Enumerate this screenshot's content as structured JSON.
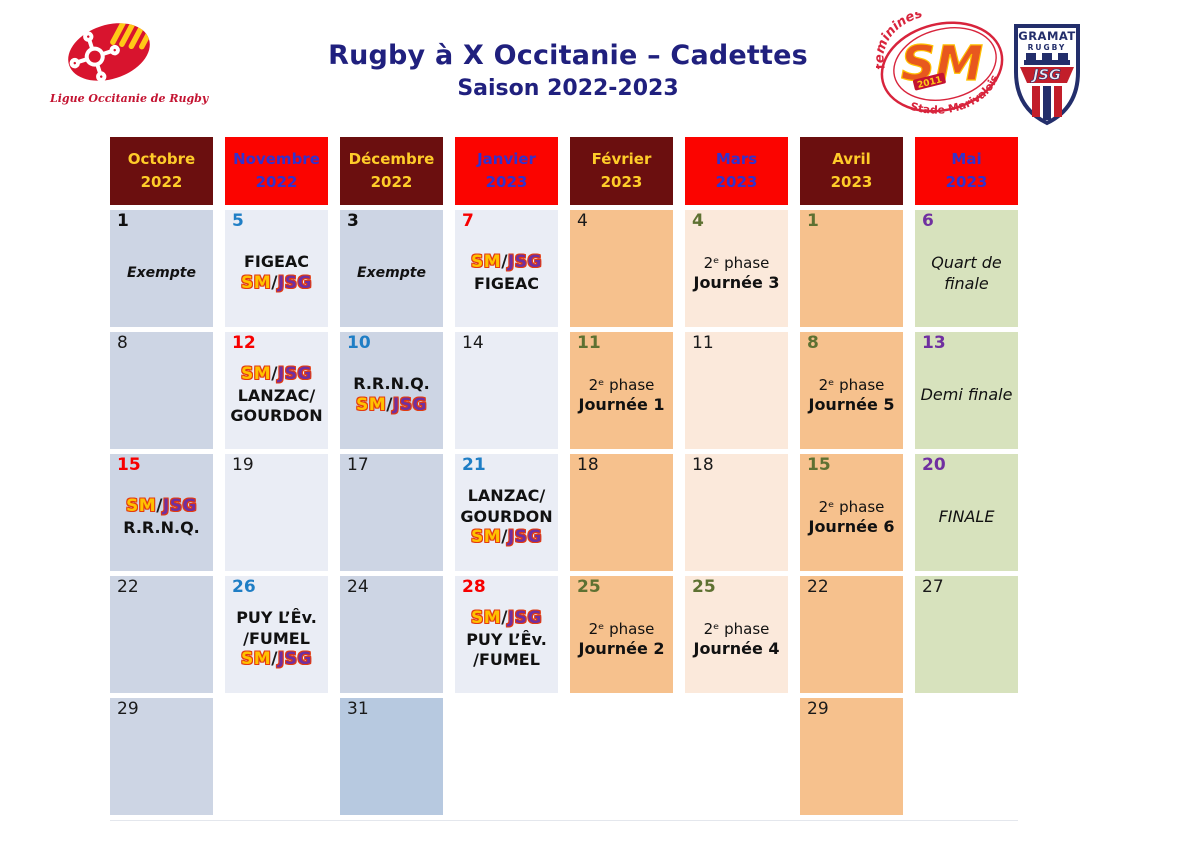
{
  "header": {
    "title": "Rugby à X Occitanie – Cadettes",
    "subtitle": "Saison 2022-2023",
    "ligue_logo_caption": "Ligue Occitanie de Rugby",
    "sm_logo": {
      "arc_top": "féminines",
      "monogram": "SM",
      "year": "2011",
      "arc_bottom": "Stade Marivalois"
    },
    "jsg_logo": {
      "club": "GRAMAT",
      "sport": "RUGBY",
      "initials": "JSG"
    }
  },
  "months": [
    {
      "name": "Octobre",
      "year": "2022",
      "style": "maroon"
    },
    {
      "name": "Novembre",
      "year": "2022",
      "style": "red"
    },
    {
      "name": "Décembre",
      "year": "2022",
      "style": "maroon"
    },
    {
      "name": "Janvier",
      "year": "2023",
      "style": "red"
    },
    {
      "name": "Février",
      "year": "2023",
      "style": "maroon"
    },
    {
      "name": "Mars",
      "year": "2023",
      "style": "red"
    },
    {
      "name": "Avril",
      "year": "2023",
      "style": "maroon"
    },
    {
      "name": "Mai",
      "year": "2023",
      "style": "red"
    }
  ],
  "colors": {
    "maroon_header": "#6B0F0F",
    "red_header": "#FB0400",
    "month_yellow_text": "#FFCC29",
    "month_blue_text": "#3232CD",
    "title_navy": "#20207E",
    "day_blue": "#1F7EC5",
    "day_red": "#F70000",
    "day_olive": "#5E7132",
    "day_purple": "#7030A0",
    "cell_blue_dark": "#CDD5E4",
    "cell_blue_light": "#EAEDF5",
    "cell_blue_strong": "#B7C9E0",
    "cell_orange": "#F6C18D",
    "cell_cream": "#FBE9DB",
    "cell_green": "#D7E2BD",
    "sm_yellow": "#FFC200",
    "jsg_purple": "#7030A0",
    "team_outline_red": "#E33B10"
  },
  "cells": [
    {
      "day": "1",
      "dayColor": "blackbold",
      "bg": "blue-dark",
      "lines": [
        {
          "t": "Exempte",
          "s": "exempte"
        }
      ]
    },
    {
      "day": "5",
      "dayColor": "blue",
      "bg": "blue-light",
      "lines": [
        {
          "t": "FIGEAC",
          "s": "team"
        },
        {
          "t": "SM/JSG",
          "s": "smjsg"
        }
      ]
    },
    {
      "day": "3",
      "dayColor": "blackbold",
      "bg": "blue-dark",
      "lines": [
        {
          "t": "Exempte",
          "s": "exempte"
        }
      ]
    },
    {
      "day": "7",
      "dayColor": "red",
      "bg": "blue-light",
      "lines": [
        {
          "t": "SM/JSG",
          "s": "smjsg"
        },
        {
          "t": "FIGEAC",
          "s": "team"
        }
      ]
    },
    {
      "day": "4",
      "dayColor": "black",
      "bg": "orange",
      "lines": []
    },
    {
      "day": "4",
      "dayColor": "olive",
      "bg": "cream",
      "lines": [
        {
          "t": "2ᵉ phase",
          "s": "phase"
        },
        {
          "t": "Journée 3",
          "s": "journee"
        }
      ]
    },
    {
      "day": "1",
      "dayColor": "olive",
      "bg": "orange",
      "lines": []
    },
    {
      "day": "6",
      "dayColor": "purple",
      "bg": "green",
      "lines": [
        {
          "t": "Quart de finale",
          "s": "final"
        }
      ]
    },
    {
      "day": "8",
      "dayColor": "black",
      "bg": "blue-dark",
      "lines": []
    },
    {
      "day": "12",
      "dayColor": "red",
      "bg": "blue-light",
      "lines": [
        {
          "t": "SM/JSG",
          "s": "smjsg"
        },
        {
          "t": "LANZAC/",
          "s": "team"
        },
        {
          "t": "GOURDON",
          "s": "team"
        }
      ]
    },
    {
      "day": "10",
      "dayColor": "blue",
      "bg": "blue-dark",
      "lines": [
        {
          "t": "R.R.N.Q.",
          "s": "team"
        },
        {
          "t": "SM/JSG",
          "s": "smjsg"
        }
      ]
    },
    {
      "day": "14",
      "dayColor": "black",
      "bg": "blue-light",
      "lines": []
    },
    {
      "day": "11",
      "dayColor": "olive",
      "bg": "orange",
      "lines": [
        {
          "t": "2ᵉ phase",
          "s": "phase"
        },
        {
          "t": "Journée 1",
          "s": "journee"
        }
      ]
    },
    {
      "day": "11",
      "dayColor": "black",
      "bg": "cream",
      "lines": []
    },
    {
      "day": "8",
      "dayColor": "olive",
      "bg": "orange",
      "lines": [
        {
          "t": "2ᵉ phase",
          "s": "phase"
        },
        {
          "t": "Journée 5",
          "s": "journee"
        }
      ]
    },
    {
      "day": "13",
      "dayColor": "purple",
      "bg": "green",
      "lines": [
        {
          "t": "Demi finale",
          "s": "final"
        }
      ]
    },
    {
      "day": "15",
      "dayColor": "red",
      "bg": "blue-dark",
      "lines": [
        {
          "t": "SM/JSG",
          "s": "smjsg"
        },
        {
          "t": "R.R.N.Q.",
          "s": "team"
        }
      ]
    },
    {
      "day": "19",
      "dayColor": "black",
      "bg": "blue-light",
      "lines": []
    },
    {
      "day": "17",
      "dayColor": "black",
      "bg": "blue-dark",
      "lines": []
    },
    {
      "day": "21",
      "dayColor": "blue",
      "bg": "blue-light",
      "lines": [
        {
          "t": "LANZAC/",
          "s": "team"
        },
        {
          "t": "GOURDON",
          "s": "team"
        },
        {
          "t": "SM/JSG",
          "s": "smjsg"
        }
      ]
    },
    {
      "day": "18",
      "dayColor": "black",
      "bg": "orange",
      "lines": []
    },
    {
      "day": "18",
      "dayColor": "black",
      "bg": "cream",
      "lines": []
    },
    {
      "day": "15",
      "dayColor": "olive",
      "bg": "orange",
      "lines": [
        {
          "t": "2ᵉ phase",
          "s": "phase"
        },
        {
          "t": "Journée 6",
          "s": "journee"
        }
      ]
    },
    {
      "day": "20",
      "dayColor": "purple",
      "bg": "green",
      "lines": [
        {
          "t": "FINALE",
          "s": "final"
        }
      ]
    },
    {
      "day": "22",
      "dayColor": "black",
      "bg": "blue-dark",
      "lines": []
    },
    {
      "day": "26",
      "dayColor": "blue",
      "bg": "blue-light",
      "lines": [
        {
          "t": "PUY L’Êv.",
          "s": "team"
        },
        {
          "t": "/FUMEL",
          "s": "team"
        },
        {
          "t": "SM/JSG",
          "s": "smjsg"
        }
      ]
    },
    {
      "day": "24",
      "dayColor": "black",
      "bg": "blue-dark",
      "lines": []
    },
    {
      "day": "28",
      "dayColor": "red",
      "bg": "blue-light",
      "lines": [
        {
          "t": "SM/JSG",
          "s": "smjsg"
        },
        {
          "t": "PUY L’Êv.",
          "s": "team"
        },
        {
          "t": "/FUMEL",
          "s": "team"
        }
      ]
    },
    {
      "day": "25",
      "dayColor": "olive",
      "bg": "orange",
      "lines": [
        {
          "t": "2ᵉ phase",
          "s": "phase"
        },
        {
          "t": "Journée 2",
          "s": "journee"
        }
      ]
    },
    {
      "day": "25",
      "dayColor": "olive",
      "bg": "cream",
      "lines": [
        {
          "t": "2ᵉ phase",
          "s": "phase"
        },
        {
          "t": "Journée 4",
          "s": "journee"
        }
      ]
    },
    {
      "day": "22",
      "dayColor": "black",
      "bg": "orange",
      "lines": []
    },
    {
      "day": "27",
      "dayColor": "black",
      "bg": "green",
      "lines": []
    },
    {
      "day": "29",
      "dayColor": "black",
      "bg": "blue-dark",
      "lines": []
    },
    {
      "bg": "none"
    },
    {
      "day": "31",
      "dayColor": "black",
      "bg": "blue-strong",
      "lines": []
    },
    {
      "bg": "none"
    },
    {
      "bg": "none"
    },
    {
      "bg": "none"
    },
    {
      "day": "29",
      "dayColor": "black",
      "bg": "orange",
      "lines": []
    },
    {
      "bg": "none"
    }
  ]
}
